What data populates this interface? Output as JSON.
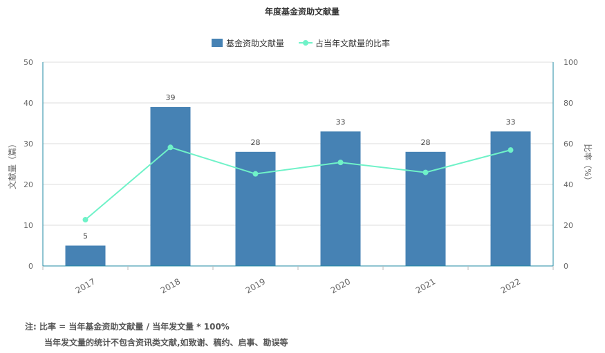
{
  "chart_data": {
    "type": "bar+line",
    "title": "年度基金资助文献量",
    "categories": [
      "2017",
      "2018",
      "2019",
      "2020",
      "2021",
      "2022"
    ],
    "series": [
      {
        "name": "基金资助文献量",
        "type": "bar",
        "axis": "left",
        "color": "#4682b4",
        "values": [
          5,
          39,
          28,
          33,
          28,
          33
        ]
      },
      {
        "name": "占当年文献量的比率",
        "type": "line",
        "axis": "right",
        "color": "#6ff2c8",
        "values": [
          22.7,
          58.2,
          45.2,
          50.8,
          45.9,
          56.9
        ]
      }
    ],
    "ylabel_left": "文献量（篇）",
    "ylabel_right": "比率（%）",
    "ylim_left": [
      0,
      50
    ],
    "yticks_left": [
      0,
      10,
      20,
      30,
      40,
      50
    ],
    "ylim_right": [
      0,
      100
    ],
    "yticks_right": [
      0,
      20,
      40,
      60,
      80,
      100
    ],
    "grid": true,
    "legend": "top-center"
  },
  "notes": {
    "line1": "注:   比率 = 当年基金资助文献量 / 当年发文量 * 100%",
    "line2": "当年发文量的统计不包含资讯类文献,如致谢、稿约、启事、勘误等"
  }
}
